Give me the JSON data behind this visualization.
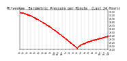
{
  "title": "Milwaukee  Barometric Pressure per Minute  (Last 24 Hours)",
  "line_color": "#ff0000",
  "bg_color": "#ffffff",
  "grid_color": "#aaaaaa",
  "ylim": [
    29.0,
    30.15
  ],
  "yticks": [
    29.0,
    29.1,
    29.2,
    29.3,
    29.4,
    29.5,
    29.6,
    29.7,
    29.8,
    29.9,
    30.0,
    30.1
  ],
  "ytick_labels": [
    "29.00",
    "29.10",
    "29.20",
    "29.30",
    "29.40",
    "29.50",
    "29.60",
    "29.70",
    "29.80",
    "29.90",
    "30.00",
    "30.10"
  ],
  "num_points": 1440,
  "xtick_labels": [
    "1p",
    "2p",
    "3p",
    "4p",
    "5p",
    "6p",
    "7p",
    "8p",
    "9p",
    "10p",
    "11p",
    "12a",
    "1a",
    "2a",
    "3a",
    "4a",
    "5a",
    "6a",
    "7a",
    "8a",
    "9a",
    "10a",
    "11a",
    "12p"
  ],
  "title_fontsize": 3.5,
  "tick_fontsize": 2.2,
  "marker_size": 0.3
}
